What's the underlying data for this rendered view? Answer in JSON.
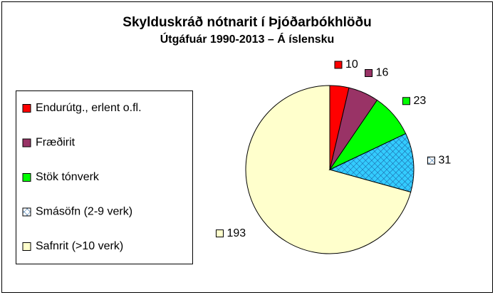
{
  "chart_data": {
    "type": "pie",
    "title": "Skylduskráð nótnarit í Þjóðarbókhlöðu",
    "subtitle": "Útgáfuár 1990-2013 – Á íslensku",
    "categories": [
      "Endurútg., erlent o.fl.",
      "Fræðirit",
      "Stök tónverk",
      "Smásöfn (2-9 verk)",
      "Safnrit (>10 verk)"
    ],
    "values": [
      10,
      16,
      23,
      31,
      193
    ],
    "colors": [
      "#ff0000",
      "#993366",
      "#00ff00",
      "#33ccff",
      "#ffffcc"
    ],
    "hatched": [
      false,
      false,
      false,
      true,
      false
    ],
    "legend": "left"
  }
}
